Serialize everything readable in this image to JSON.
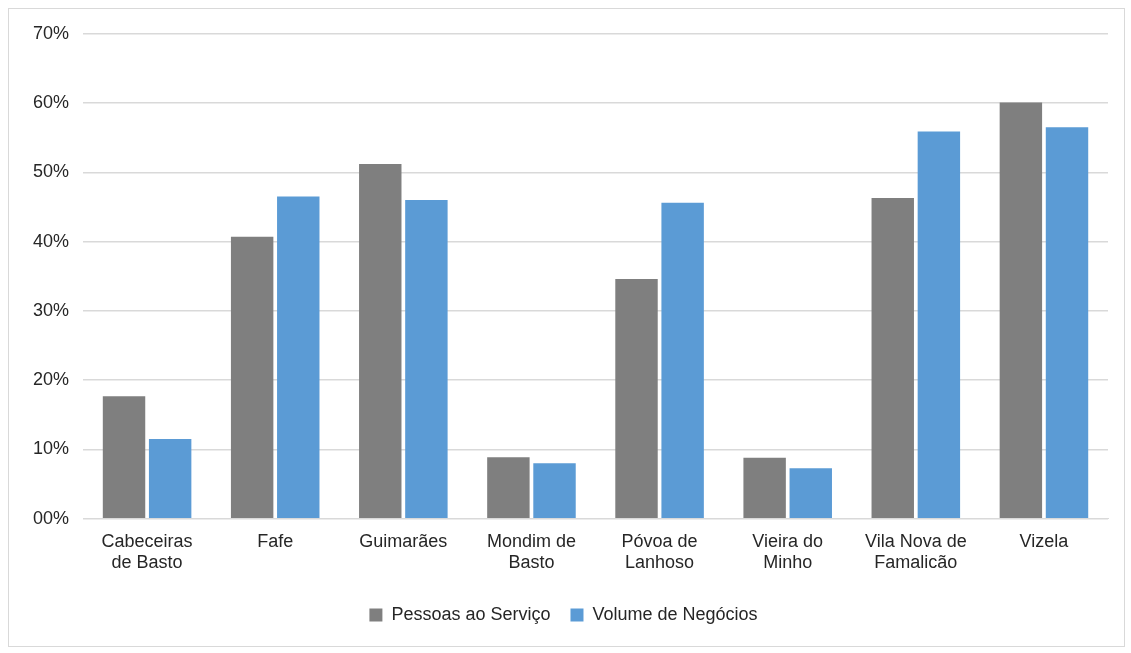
{
  "chart_data": {
    "type": "bar",
    "categories": [
      "Cabeceiras de Basto",
      "Fafe",
      "Guimarães",
      "Mondim de Basto",
      "Póvoa de Lanhoso",
      "Vieira do Minho",
      "Vila Nova de Famalicão",
      "Vizela"
    ],
    "series": [
      {
        "name": "Pessoas ao Serviço",
        "color": "#7f7f7f",
        "values": [
          17.7,
          40.7,
          51.2,
          8.9,
          34.6,
          8.8,
          46.3,
          60.1
        ]
      },
      {
        "name": "Volume de Negócios",
        "color": "#5b9bd5",
        "values": [
          11.5,
          46.5,
          46.0,
          8.0,
          45.6,
          7.3,
          55.9,
          56.5
        ]
      }
    ],
    "ylim": [
      0,
      70
    ],
    "yticks": [
      {
        "value": 0,
        "label": "00%"
      },
      {
        "value": 10,
        "label": "10%"
      },
      {
        "value": 20,
        "label": "20%"
      },
      {
        "value": 30,
        "label": "30%"
      },
      {
        "value": 40,
        "label": "40%"
      },
      {
        "value": 50,
        "label": "50%"
      },
      {
        "value": 60,
        "label": "60%"
      },
      {
        "value": 70,
        "label": "70%"
      }
    ],
    "grid": "y",
    "legend": "bottom"
  }
}
